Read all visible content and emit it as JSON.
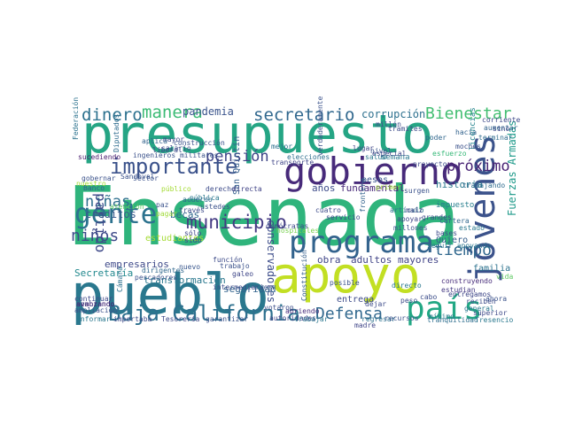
{
  "words": [
    {
      "text": "Ensenada",
      "color": "#2fb47c"
    },
    {
      "text": "presupuesto",
      "color": "#25a584"
    },
    {
      "text": "pueblo",
      "color": "#2a788e"
    },
    {
      "text": "apoyo",
      "color": "#c2df23"
    },
    {
      "text": "gobierno",
      "color": "#472a7a"
    },
    {
      "text": "programa",
      "color": "#33638d"
    },
    {
      "text": "jóvenes",
      "color": "#3b528b"
    },
    {
      "text": "país",
      "color": "#22a884"
    },
    {
      "text": "gente",
      "color": "#2c728e"
    },
    {
      "text": "Baja California",
      "color": "#2d708e"
    },
    {
      "text": "importante",
      "color": "#3b528b"
    },
    {
      "text": "municipio",
      "color": "#443a83"
    },
    {
      "text": "secretario",
      "color": "#31688e"
    },
    {
      "text": "manera",
      "color": "#3bbb75"
    },
    {
      "text": "dinero",
      "color": "#2c718e"
    },
    {
      "text": "Bienestar",
      "color": "#42be71"
    },
    {
      "text": "pensión",
      "color": "#404688"
    },
    {
      "text": "próximo",
      "color": "#482374"
    },
    {
      "text": "Defensa",
      "color": "#31688e"
    },
    {
      "text": "niñas",
      "color": "#2e6f8e"
    },
    {
      "text": "tiempo",
      "color": "#31688e"
    },
    {
      "text": "niños",
      "color": "#3e4a89"
    },
    {
      "text": "partido",
      "color": "#3e4989"
    },
    {
      "text": "pandemia",
      "color": "#3a548c"
    },
    {
      "text": "corrupción",
      "color": "#2d708e"
    },
    {
      "text": "Fuerzas Armadas",
      "color": "#1f9a8a"
    },
    {
      "text": "conservadores",
      "color": "#3d4d8a"
    },
    {
      "text": "créditos",
      "color": "#38598c"
    },
    {
      "text": "Secretaría",
      "color": "#23898e"
    },
    {
      "text": "becas",
      "color": "#31688e"
    },
    {
      "text": "años",
      "color": "#3e4c8a"
    },
    {
      "text": "fundamental",
      "color": "#482979"
    },
    {
      "text": "obra",
      "color": "#404688"
    },
    {
      "text": "adultos mayores",
      "color": "#414487"
    },
    {
      "text": "historia",
      "color": "#2a778e"
    },
    {
      "text": "empresarios",
      "color": "#3e4989"
    },
    {
      "text": "transformación",
      "color": "#2a788e"
    },
    {
      "text": "seguridad",
      "color": "#33638d"
    },
    {
      "text": "estudiantes",
      "color": "#a5db36"
    },
    {
      "text": "entrega",
      "color": "#3e4c8a"
    },
    {
      "text": "familia",
      "color": "#2c728e"
    },
    {
      "text": "Quiero",
      "color": "#355f8d"
    },
    {
      "text": "pesos",
      "color": "#39558c"
    },
    {
      "text": "San Quintín",
      "color": "#355f8d"
    },
    {
      "text": "impuesto",
      "color": "#277f8e"
    },
    {
      "text": "licencias",
      "color": "#25848e"
    },
    {
      "text": "semana",
      "color": "#2a788e"
    },
    {
      "text": "autoridades",
      "color": "#404688"
    },
    {
      "text": "reciben",
      "color": "#3e4c8a"
    },
    {
      "text": "general",
      "color": "#2a788e"
    },
    {
      "text": "construyendo",
      "color": "#472c7a"
    },
    {
      "text": "entregamos",
      "color": "#3f4788"
    },
    {
      "text": "ingenieros militares",
      "color": "#3b528b"
    },
    {
      "text": "sucediendo",
      "color": "#481b6d"
    },
    {
      "text": "hospitales",
      "color": "#7ad151"
    },
    {
      "text": "Banco",
      "color": "#355f8d"
    },
    {
      "text": "trabajo",
      "color": "#3b528b"
    },
    {
      "text": "intermediarios",
      "color": "#3e4c8a"
    },
    {
      "text": "galeo",
      "color": "#3f4788"
    },
    {
      "text": "pública",
      "color": "#2a788e"
    },
    {
      "text": "elecciones",
      "color": "#2e6e8e"
    },
    {
      "text": "nivel",
      "color": "#39568c"
    },
    {
      "text": "tramites",
      "color": "#3e4c8a"
    },
    {
      "text": "poder",
      "color": "#31678e"
    },
    {
      "text": "hacia",
      "color": "#33638d"
    },
    {
      "text": "terminar",
      "color": "#2f6c8e"
    },
    {
      "text": "moches",
      "color": "#3b528b"
    },
    {
      "text": "corriente",
      "color": "#3e4989"
    },
    {
      "text": "sino",
      "color": "#404688"
    },
    {
      "text": "tranquilidad",
      "color": "#2e6e8e"
    },
    {
      "text": "Tresencio",
      "color": "#2a788e"
    },
    {
      "text": "estudian",
      "color": "#443983"
    },
    {
      "text": "superior",
      "color": "#3e4989"
    },
    {
      "text": "cabo",
      "color": "#3d4e8a"
    },
    {
      "text": "aumentar",
      "color": "#33638d"
    },
    {
      "text": "millón",
      "color": "#3e4c8a"
    },
    {
      "text": "esfuerzo",
      "color": "#37b878"
    },
    {
      "text": "especial",
      "color": "#3f4889"
    },
    {
      "text": "seguir apoyando",
      "color": "#2a768e"
    },
    {
      "text": "sembrando",
      "color": "#3e4c8a"
    },
    {
      "text": "vida",
      "color": "#5ec962"
    },
    {
      "text": "dirigentes",
      "color": "#31688e"
    },
    {
      "text": "pescadores",
      "color": "#3b528b"
    },
    {
      "text": "ampliación",
      "color": "#3b528b"
    },
    {
      "text": "informar",
      "color": "#2a788e"
    },
    {
      "text": "importaba",
      "color": "#3e4c8a"
    },
    {
      "text": "Tesorería",
      "color": "#3e4989"
    },
    {
      "text": "garantizar",
      "color": "#3b528b"
    },
    {
      "text": "trabajar",
      "color": "#2a768e"
    },
    {
      "text": "regresar",
      "color": "#2c718e"
    },
    {
      "text": "recursos",
      "color": "#3b528b"
    },
    {
      "text": "dejar",
      "color": "#3e4c8a"
    },
    {
      "text": "abriendo",
      "color": "#472d7b"
    },
    {
      "text": "votaron",
      "color": "#3d4e8a"
    },
    {
      "text": "avanzando",
      "color": "#482475"
    },
    {
      "text": "continuar",
      "color": "#3e4989"
    },
    {
      "text": "nuevo",
      "color": "#39568c"
    },
    {
      "text": "sólo",
      "color": "#404688"
    },
    {
      "text": "sido",
      "color": "#3f4889"
    },
    {
      "text": "pagar",
      "color": "#a0da39"
    },
    {
      "text": "paz",
      "color": "#3b528b"
    },
    {
      "text": "través",
      "color": "#3e4c8a"
    },
    {
      "text": "directa",
      "color": "#414487"
    },
    {
      "text": "derecho",
      "color": "#3e4c8a"
    },
    {
      "text": "público",
      "color": "#a5db36"
    },
    {
      "text": "frontera",
      "color": "#33638d"
    },
    {
      "text": "Diputados",
      "color": "#2f6c8e"
    },
    {
      "text": "Federación",
      "color": "#2c728e"
    },
    {
      "text": "salario",
      "color": "#3e4c8a"
    },
    {
      "text": "mayor",
      "color": "#3e4989"
    },
    {
      "text": "construcción",
      "color": "#3b528b"
    },
    {
      "text": "aplica",
      "color": "#33638d"
    },
    {
      "text": "liberal",
      "color": "#3e4c8a"
    },
    {
      "text": "Sandoval",
      "color": "#3b528b"
    },
    {
      "text": "mínimo",
      "color": "#2a788e"
    },
    {
      "text": "Cámara",
      "color": "#2c718e"
    },
    {
      "text": "Constitución",
      "color": "#355f8d"
    },
    {
      "text": "cuatro",
      "color": "#3e4c8a"
    },
    {
      "text": "madre",
      "color": "#404688"
    },
    {
      "text": "verdaderamente",
      "color": "#3b528b"
    },
    {
      "text": "salud",
      "color": "#2a788e"
    },
    {
      "text": "cartera",
      "color": "#31688e"
    },
    {
      "text": "función",
      "color": "#3e4c8a"
    },
    {
      "text": "millones",
      "color": "#3b528b"
    },
    {
      "text": "apoyar",
      "color": "#404688"
    },
    {
      "text": "trabajando",
      "color": "#2f6c8e"
    },
    {
      "text": "primer",
      "color": "#a0da39"
    },
    {
      "text": "grandes",
      "color": "#3e4c8a"
    },
    {
      "text": "atención",
      "color": "#5ec962"
    },
    {
      "text": "ahora",
      "color": "#3b528b"
    },
    {
      "text": "artículo",
      "color": "#2c718e"
    },
    {
      "text": "lugar",
      "color": "#404688"
    },
    {
      "text": "peso",
      "color": "#3e4c8a"
    },
    {
      "text": "directo",
      "color": "#2a788e"
    },
    {
      "text": "gobernar",
      "color": "#3b528b"
    },
    {
      "text": "demócratas",
      "color": "#3e4989"
    },
    {
      "text": "posible",
      "color": "#3b528b"
    },
    {
      "text": "acuerdo",
      "color": "#2f6c8e"
    },
    {
      "text": "bases",
      "color": "#3e4c8a"
    },
    {
      "text": "nuestro",
      "color": "#a5db36"
    },
    {
      "text": "ustedes",
      "color": "#3b528b"
    },
    {
      "text": "estado",
      "color": "#2a788e"
    },
    {
      "text": "proyecto",
      "color": "#3e4c8a"
    },
    {
      "text": "maíz",
      "color": "#404688"
    },
    {
      "text": "sector",
      "color": "#3b528b"
    },
    {
      "text": "mejor",
      "color": "#2c718e"
    },
    {
      "text": "servicio",
      "color": "#3e4c8a"
    },
    {
      "text": "surgen",
      "color": "#3b528b"
    },
    {
      "text": "transporte",
      "color": "#404688"
    }
  ]
}
